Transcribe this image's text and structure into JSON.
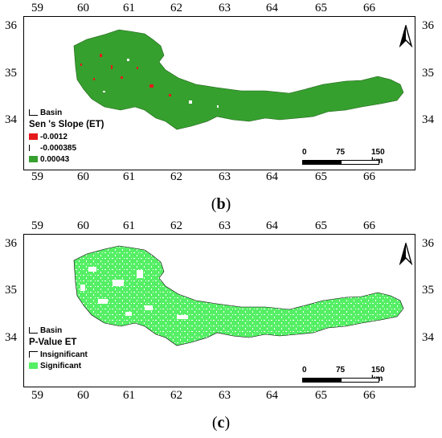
{
  "longitude_ticks": [
    "59",
    "60",
    "61",
    "62",
    "63",
    "64",
    "65",
    "66"
  ],
  "latitude_ticks": [
    "36",
    "35",
    "34"
  ],
  "scale_bar": {
    "labels": [
      "0",
      "75",
      "150 km"
    ]
  },
  "panels": [
    {
      "id": "b",
      "caption_open": "(",
      "caption_letter": "b",
      "caption_close": ")",
      "legend": {
        "basin_label": "Basin",
        "title": "Sen 's Slope (ET)",
        "classes": [
          {
            "label": "-0.0012",
            "color": "#e41a1c"
          },
          {
            "label": "-0.000385",
            "color": "#ffffff"
          },
          {
            "label": "0.00043",
            "color": "#36a02e"
          }
        ]
      }
    },
    {
      "id": "c",
      "caption_open": "(",
      "caption_letter": "c",
      "caption_close": ")",
      "legend": {
        "basin_label": "Basin",
        "title": "P-Value ET",
        "classes": [
          {
            "label": "Insignificant",
            "color": "#ffffff"
          },
          {
            "label": "Significant",
            "color": "#55ef65"
          }
        ]
      }
    }
  ]
}
